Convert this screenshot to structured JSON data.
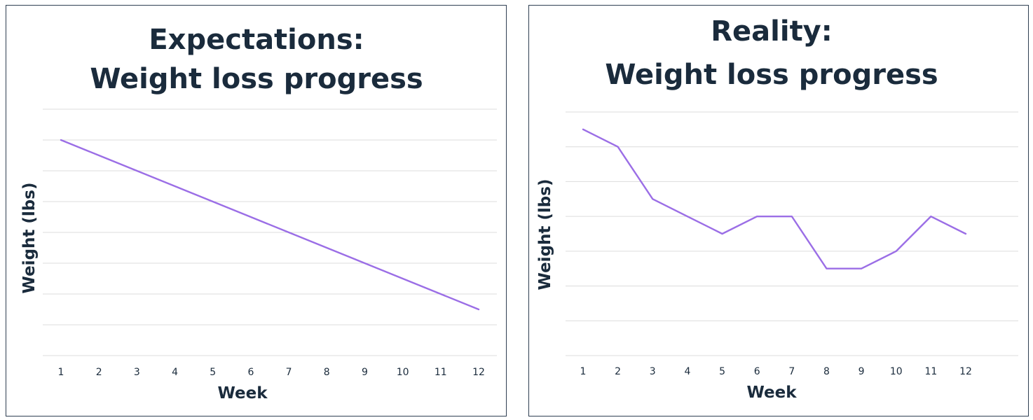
{
  "colors": {
    "line": "#9b6ee6",
    "text": "#1a2b3c",
    "grid": "#dcdcdc",
    "border": "#2f3f52"
  },
  "chart_data": [
    {
      "type": "line",
      "title_line1": "Expectations:",
      "title_line2": "Weight loss progress",
      "xlabel": "Week",
      "ylabel": "Weight (lbs)",
      "categories": [
        "1",
        "2",
        "3",
        "4",
        "5",
        "6",
        "7",
        "8",
        "9",
        "10",
        "11",
        "12"
      ],
      "x": [
        1,
        2,
        3,
        4,
        5,
        6,
        7,
        8,
        9,
        10,
        11,
        12
      ],
      "values": [
        7.0,
        6.5,
        6.0,
        5.5,
        5.0,
        4.5,
        4.0,
        3.5,
        3.0,
        2.5,
        2.0,
        1.5
      ],
      "ylim": [
        0,
        8
      ],
      "grid": true,
      "y_tick_labels_shown": false
    },
    {
      "type": "line",
      "title_line1": "Reality:",
      "title_line2": "Weight loss progress",
      "xlabel": "Week",
      "ylabel": "Weight (lbs)",
      "categories": [
        "1",
        "2",
        "3",
        "4",
        "5",
        "6",
        "7",
        "8",
        "9",
        "10",
        "11",
        "12"
      ],
      "x": [
        1,
        2,
        3,
        4,
        5,
        6,
        7,
        8,
        9,
        10,
        11,
        12
      ],
      "values": [
        6.5,
        6.0,
        4.5,
        4.0,
        3.5,
        4.0,
        4.0,
        2.5,
        2.5,
        3.0,
        4.0,
        3.5
      ],
      "ylim": [
        0,
        7
      ],
      "grid": true,
      "y_tick_labels_shown": false
    }
  ]
}
